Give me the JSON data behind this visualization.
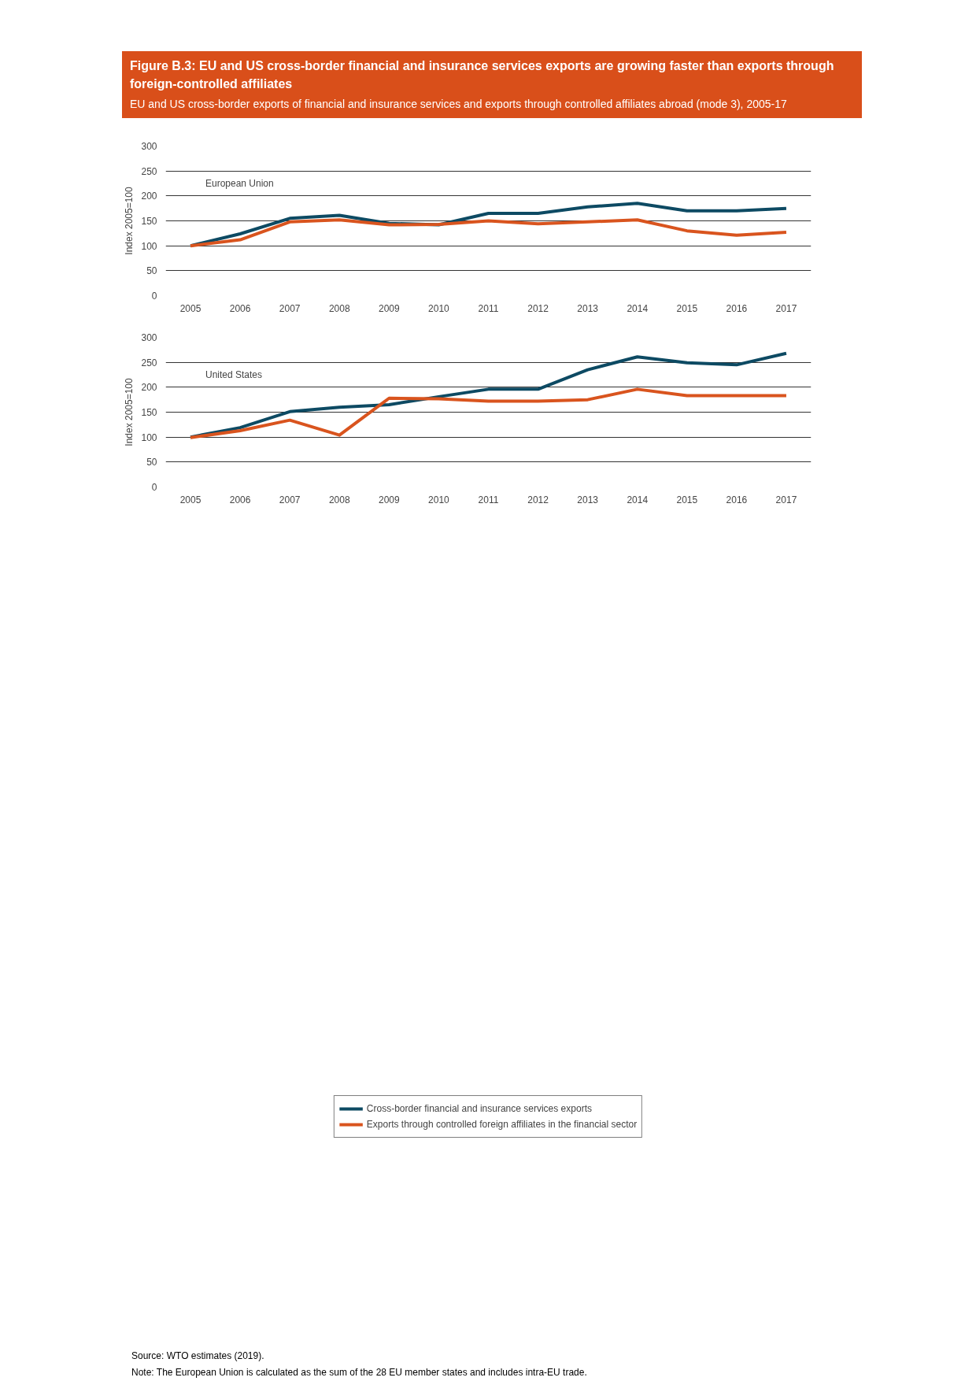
{
  "chart_data": [
    {
      "type": "line",
      "title": "Figure B.3: EU and US cross-border financial and insurance services exports are growing faster than exports through foreign-controlled affiliates",
      "subtitle": "EU and US cross-border exports of financial and insurance services and exports through controlled affiliates abroad (mode 3), 2005-17",
      "ylabel": "Index 2005=100",
      "annotations": [
        "European Union"
      ],
      "categories": [
        "2005",
        "2006",
        "2007",
        "2008",
        "2009",
        "2010",
        "2011",
        "2012",
        "2013",
        "2014",
        "2015",
        "2016",
        "2017"
      ],
      "series": [
        {
          "color": "#0d4a63",
          "values": [
            100,
            124,
            155,
            161,
            145,
            142,
            165,
            165,
            178,
            185,
            170,
            170,
            175
          ]
        },
        {
          "color": "#d9541e",
          "values": [
            100,
            112,
            148,
            152,
            142,
            143,
            150,
            144,
            148,
            152,
            130,
            121,
            127
          ]
        }
      ],
      "ylim": [
        0,
        300
      ],
      "yticks": [
        0,
        50,
        100,
        150,
        200,
        250,
        300
      ],
      "grid": "y",
      "legend": false
    },
    {
      "type": "line",
      "ylabel": "Index 2005=100",
      "annotations": [
        "United States",
        "Source: WTO estimates (2019).",
        "Note: The European Union is calculated as the sum of the 28 EU member states and includes intra-EU trade."
      ],
      "categories": [
        "2005",
        "2006",
        "2007",
        "2008",
        "2009",
        "2010",
        "2011",
        "2012",
        "2013",
        "2014",
        "2015",
        "2016",
        "2017"
      ],
      "series": [
        {
          "name": "Cross-border financial and insurance services exports",
          "color": "#0d4a63",
          "values": [
            100,
            119,
            151,
            160,
            165,
            181,
            196,
            196,
            235,
            261,
            249,
            245,
            268
          ]
        },
        {
          "name": "Exports through controlled foreign affiliates in the financial sector",
          "color": "#d9541e",
          "values": [
            99,
            113,
            134,
            104,
            178,
            177,
            172,
            172,
            175,
            196,
            183,
            183,
            183
          ]
        }
      ],
      "ylim": [
        0,
        300
      ],
      "yticks": [
        0,
        50,
        100,
        150,
        200,
        250,
        300
      ],
      "grid": "y",
      "legend": "bottom"
    }
  ]
}
